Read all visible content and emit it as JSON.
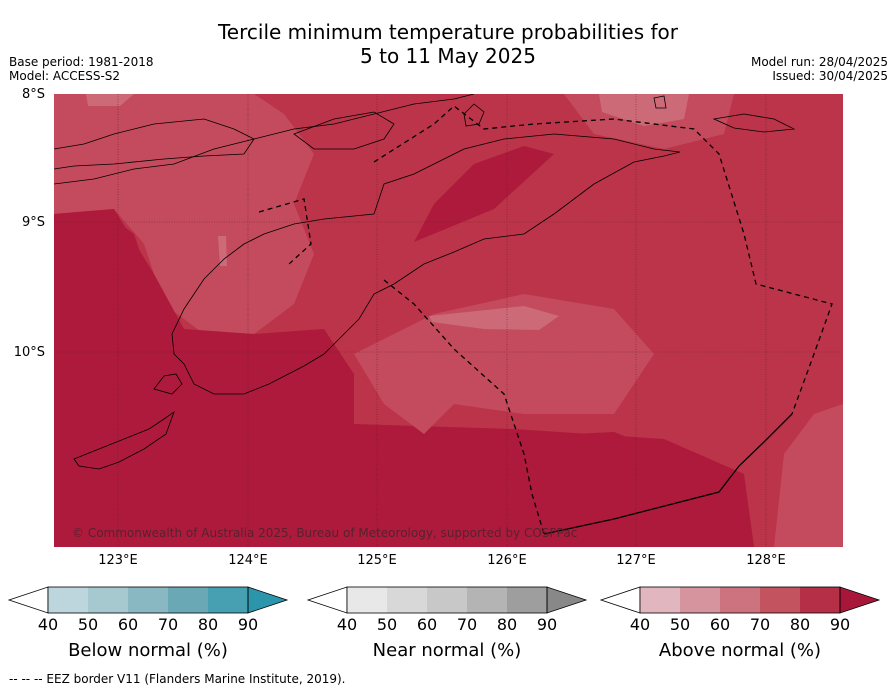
{
  "title_line1": "Tercile minimum temperature probabilities for",
  "title_line2": "5 to 11 May 2025",
  "base_period": "Base period: 1981-2018",
  "model": "Model: ACCESS-S2",
  "model_run": "Model run: 28/04/2025",
  "issued": "Issued: 30/04/2025",
  "latitudes": [
    "8°S",
    "9°S",
    "10°S"
  ],
  "longitudes": [
    "123°E",
    "124°E",
    "125°E",
    "126°E",
    "127°E",
    "128°E"
  ],
  "copyright": "© Commonwealth of Australia 2025, Bureau of Meteorology, supported by COSPPac",
  "legends": [
    {
      "title": "Below normal (%)",
      "ticks": [
        "40",
        "50",
        "60",
        "70",
        "80",
        "90"
      ],
      "colors": [
        "#ffffff",
        "#bdd6de",
        "#a6c8cf",
        "#8ab8c2",
        "#6aa8b6",
        "#46a0b2",
        "#2a95ab"
      ]
    },
    {
      "title": "Near normal (%)",
      "ticks": [
        "40",
        "50",
        "60",
        "70",
        "80",
        "90"
      ],
      "colors": [
        "#ffffff",
        "#e8e8e8",
        "#d8d8d8",
        "#c8c8c8",
        "#b4b4b4",
        "#9e9e9e",
        "#888888"
      ]
    },
    {
      "title": "Above normal (%)",
      "ticks": [
        "40",
        "50",
        "60",
        "70",
        "80",
        "90"
      ],
      "colors": [
        "#ffffff",
        "#e2b6bf",
        "#d6949f",
        "#cc737f",
        "#c2535f",
        "#b52f47",
        "#a8173a"
      ]
    }
  ],
  "map_colors": {
    "c60": "#cc6a78",
    "c70": "#c44b5d",
    "c80": "#bb3449",
    "c90": "#ae1a3b"
  },
  "footer": "--  --  -- EEZ border V11 (Flanders Marine Institute, 2019)."
}
